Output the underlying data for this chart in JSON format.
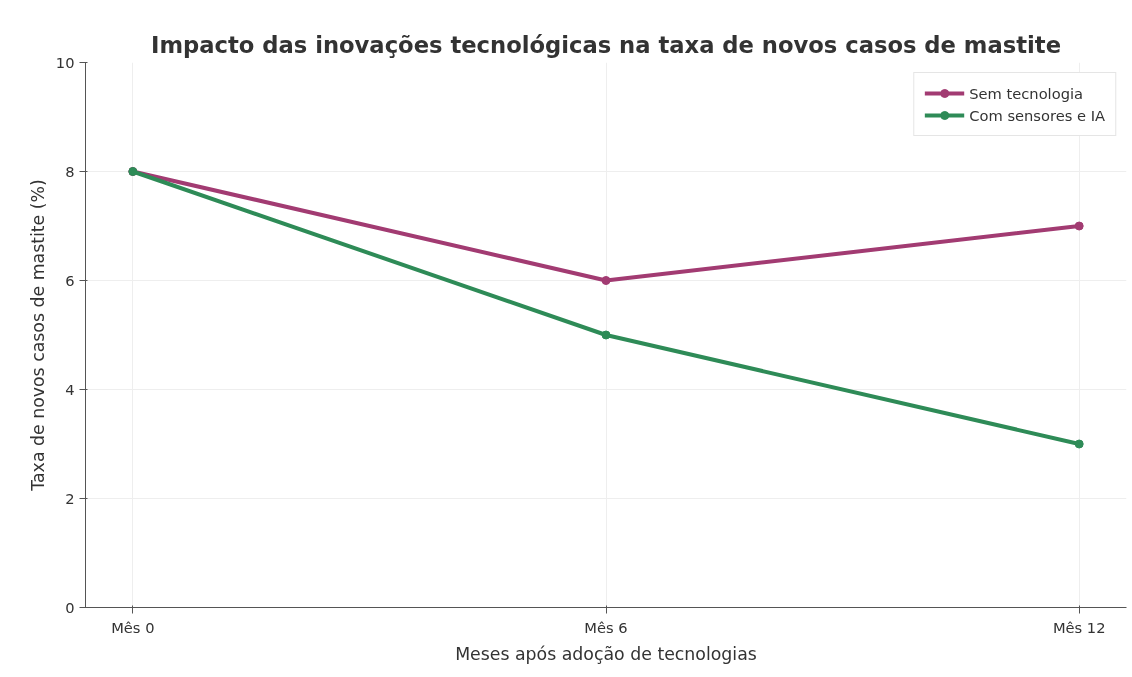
{
  "chart_data": {
    "type": "line",
    "title": "Impacto das inovações tecnológicas na taxa de novos casos de mastite",
    "xlabel": "Meses após adoção de tecnologias",
    "ylabel": "Taxa de novos casos de mastite (%)",
    "categories": [
      "Mês 0",
      "Mês 6",
      "Mês 12"
    ],
    "series": [
      {
        "name": "Sem tecnologia",
        "color": "#a23b72",
        "values": [
          8,
          6,
          7
        ]
      },
      {
        "name": "Com sensores e IA",
        "color": "#2e8b57",
        "values": [
          8,
          5,
          3
        ]
      }
    ],
    "ylim": [
      0,
      10
    ],
    "yticks": [
      0,
      2,
      4,
      6,
      8,
      10
    ],
    "grid": true,
    "legend": "top right",
    "marker": "circle",
    "line_style": "solid"
  }
}
